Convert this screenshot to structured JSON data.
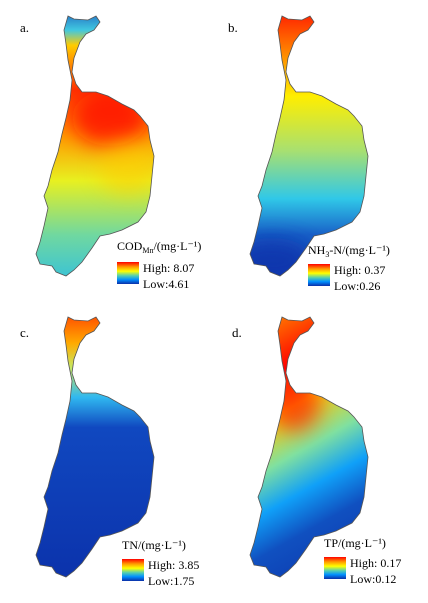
{
  "panels": [
    {
      "letter": "a.",
      "legend": {
        "title_main": "COD",
        "title_sub": "Mn",
        "title_rest": "/(mg·L⁻¹)",
        "high": "High: 8.07",
        "low": "Low:4.61"
      },
      "ramp": [
        "#ff0000",
        "#ff8800",
        "#ffff00",
        "#7fd6a0",
        "#00a0ff",
        "#0b2fa8"
      ]
    },
    {
      "letter": "b.",
      "legend": {
        "title_main": "NH",
        "title_sub": "3",
        "title_rest": "-N/(mg·L⁻¹)",
        "high": "High: 0.37",
        "low": "Low:0.26"
      },
      "ramp": [
        "#ff0000",
        "#ff8800",
        "#ffff00",
        "#7fd6a0",
        "#00a0ff",
        "#0b2fa8"
      ]
    },
    {
      "letter": "c.",
      "legend": {
        "title_main": "TN/(mg·L⁻¹)",
        "title_sub": "",
        "title_rest": "",
        "high": "High: 3.85",
        "low": "Low:1.75"
      },
      "ramp": [
        "#ff0000",
        "#ff8800",
        "#ffff00",
        "#7fd6a0",
        "#00a0ff",
        "#0b2fa8"
      ]
    },
    {
      "letter": "d.",
      "legend": {
        "title_main": "TP/(mg·L⁻¹)",
        "title_sub": "",
        "title_rest": "",
        "high": "High: 0.17",
        "low": "Low:0.12"
      },
      "ramp": [
        "#ff0000",
        "#ff8800",
        "#ffff00",
        "#7fd6a0",
        "#00a0ff",
        "#0b2fa8"
      ]
    }
  ]
}
